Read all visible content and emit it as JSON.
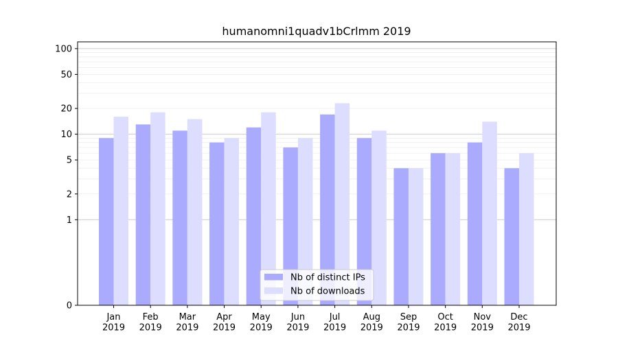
{
  "chart_data": {
    "type": "bar",
    "title": "humanomni1quadv1bCrlmm 2019",
    "xlabel": "",
    "ylabel": "",
    "yscale": "symlog",
    "ylim": [
      0,
      120
    ],
    "yticks": [
      0,
      1,
      2,
      5,
      10,
      20,
      50,
      100
    ],
    "ytick_labels": [
      "0",
      "1",
      "2",
      "5",
      "10",
      "20",
      "50",
      "100"
    ],
    "categories": [
      "Jan\n2019",
      "Feb\n2019",
      "Mar\n2019",
      "Apr\n2019",
      "May\n2019",
      "Jun\n2019",
      "Jul\n2019",
      "Aug\n2019",
      "Sep\n2019",
      "Oct\n2019",
      "Nov\n2019",
      "Dec\n2019"
    ],
    "series": [
      {
        "name": "Nb of distinct IPs",
        "color": "#aaaaff",
        "values": [
          9,
          13,
          11,
          8,
          12,
          7,
          17,
          9,
          4,
          6,
          8,
          4
        ]
      },
      {
        "name": "Nb of downloads",
        "color": "#ddddff",
        "values": [
          16,
          18,
          15,
          9,
          18,
          9,
          23,
          11,
          4,
          6,
          14,
          6
        ]
      }
    ],
    "legend": {
      "position": "bottom-center"
    },
    "grid": {
      "y": true,
      "x": false
    }
  }
}
